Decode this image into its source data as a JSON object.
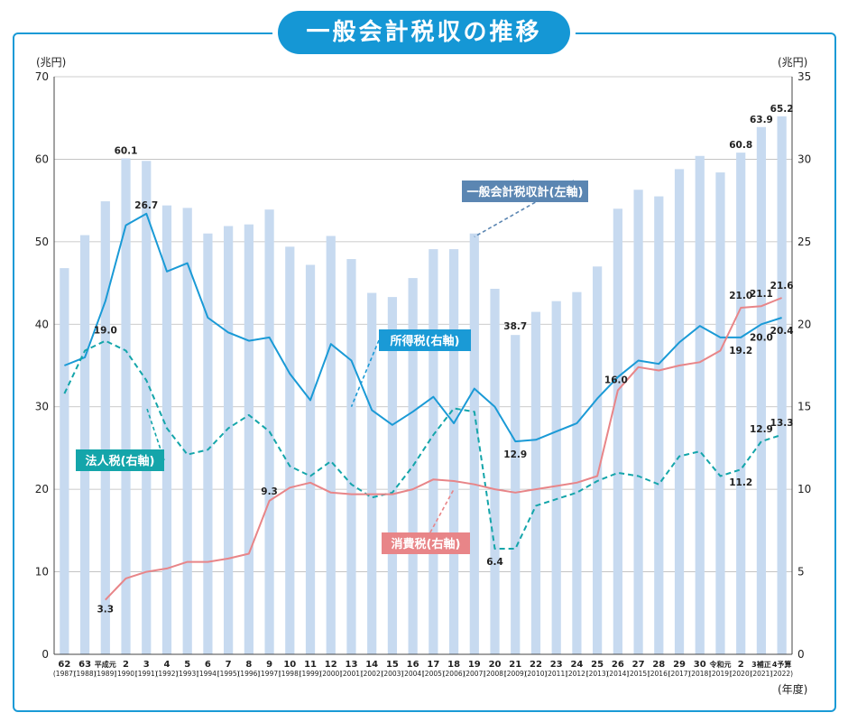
{
  "title": "一般会計税収の推移",
  "chart_data": {
    "type": "bar",
    "left_axis_unit": "(兆円)",
    "right_axis_unit": "(兆円)",
    "x_unit": "(年度)",
    "ylim_left": [
      0,
      70
    ],
    "ylim_right": [
      0,
      35
    ],
    "yticks_left": [
      "0",
      "10",
      "20",
      "30",
      "40",
      "50",
      "60",
      "70"
    ],
    "yticks_right": [
      "0",
      "5",
      "10",
      "15",
      "20",
      "25",
      "30",
      "35"
    ],
    "categories": [
      {
        "top": "62",
        "bottom": "(1987)"
      },
      {
        "top": "63",
        "bottom": "(1988)"
      },
      {
        "top": "平成元",
        "bottom": "(1989)"
      },
      {
        "top": "2",
        "bottom": "(1990)"
      },
      {
        "top": "3",
        "bottom": "(1991)"
      },
      {
        "top": "4",
        "bottom": "(1992)"
      },
      {
        "top": "5",
        "bottom": "(1993)"
      },
      {
        "top": "6",
        "bottom": "(1994)"
      },
      {
        "top": "7",
        "bottom": "(1995)"
      },
      {
        "top": "8",
        "bottom": "(1996)"
      },
      {
        "top": "9",
        "bottom": "(1997)"
      },
      {
        "top": "10",
        "bottom": "(1998)"
      },
      {
        "top": "11",
        "bottom": "(1999)"
      },
      {
        "top": "12",
        "bottom": "(2000)"
      },
      {
        "top": "13",
        "bottom": "(2001)"
      },
      {
        "top": "14",
        "bottom": "(2002)"
      },
      {
        "top": "15",
        "bottom": "(2003)"
      },
      {
        "top": "16",
        "bottom": "(2004)"
      },
      {
        "top": "17",
        "bottom": "(2005)"
      },
      {
        "top": "18",
        "bottom": "(2006)"
      },
      {
        "top": "19",
        "bottom": "(2007)"
      },
      {
        "top": "20",
        "bottom": "(2008)"
      },
      {
        "top": "21",
        "bottom": "(2009)"
      },
      {
        "top": "22",
        "bottom": "(2010)"
      },
      {
        "top": "23",
        "bottom": "(2011)"
      },
      {
        "top": "24",
        "bottom": "(2012)"
      },
      {
        "top": "25",
        "bottom": "(2013)"
      },
      {
        "top": "26",
        "bottom": "(2014)"
      },
      {
        "top": "27",
        "bottom": "(2015)"
      },
      {
        "top": "28",
        "bottom": "(2016)"
      },
      {
        "top": "29",
        "bottom": "(2017)"
      },
      {
        "top": "30",
        "bottom": "(2018)"
      },
      {
        "top": "令和元",
        "bottom": "(2019)"
      },
      {
        "top": "2",
        "bottom": "(2020)"
      },
      {
        "top": "3補正",
        "bottom": "(2021)"
      },
      {
        "top": "4予算",
        "bottom": "(2022)"
      }
    ],
    "series": [
      {
        "name": "一般会計税収計(左軸)",
        "kind": "bar",
        "axis": "left",
        "color": "#c7daf0",
        "values": [
          46.8,
          50.8,
          54.9,
          60.1,
          59.8,
          54.4,
          54.1,
          51.0,
          51.9,
          52.1,
          53.9,
          49.4,
          47.2,
          50.7,
          47.9,
          43.8,
          43.3,
          45.6,
          49.1,
          49.1,
          51.0,
          44.3,
          38.7,
          41.5,
          42.8,
          43.9,
          47.0,
          54.0,
          56.3,
          55.5,
          58.8,
          60.4,
          58.4,
          60.8,
          63.9,
          65.2
        ],
        "labels": {
          "3": "60.1",
          "22": "38.7",
          "33": "60.8",
          "34": "63.9",
          "35": "65.2"
        }
      },
      {
        "name": "所得税(右軸)",
        "kind": "line",
        "axis": "right",
        "color": "#1a9ad6",
        "dash": false,
        "values": [
          17.5,
          18.0,
          21.4,
          26.0,
          26.7,
          23.2,
          23.7,
          20.4,
          19.5,
          19.0,
          19.2,
          17.0,
          15.4,
          18.8,
          17.8,
          14.8,
          13.9,
          14.7,
          15.6,
          14.0,
          16.1,
          15.0,
          12.9,
          13.0,
          13.5,
          14.0,
          15.5,
          16.8,
          17.8,
          17.6,
          18.9,
          19.9,
          19.2,
          19.2,
          20.0,
          20.4
        ],
        "labels": {
          "4": "26.7",
          "22": "12.9",
          "33": "19.2",
          "34": "20.0",
          "35": "20.4"
        }
      },
      {
        "name": "法人税(右軸)",
        "kind": "line",
        "axis": "right",
        "color": "#14a5aa",
        "dash": true,
        "values": [
          15.8,
          18.4,
          19.0,
          18.4,
          16.6,
          13.7,
          12.1,
          12.4,
          13.7,
          14.5,
          13.5,
          11.4,
          10.8,
          11.7,
          10.3,
          9.5,
          9.8,
          11.4,
          13.3,
          14.9,
          14.7,
          6.4,
          6.4,
          9.0,
          9.4,
          9.8,
          10.5,
          11.0,
          10.8,
          10.3,
          12.0,
          12.3,
          10.8,
          11.2,
          12.9,
          13.3
        ],
        "labels": {
          "2": "19.0",
          "21": "6.4",
          "33": "11.2",
          "34": "12.9",
          "35": "13.3"
        }
      },
      {
        "name": "消費税(右軸)",
        "kind": "line",
        "axis": "right",
        "color": "#e88588",
        "dash": false,
        "values": [
          null,
          null,
          3.3,
          4.6,
          5.0,
          5.2,
          5.6,
          5.6,
          5.8,
          6.1,
          9.3,
          10.1,
          10.4,
          9.8,
          9.7,
          9.7,
          9.7,
          10.0,
          10.6,
          10.5,
          10.3,
          10.0,
          9.8,
          10.0,
          10.2,
          10.4,
          10.8,
          16.0,
          17.4,
          17.2,
          17.5,
          17.7,
          18.4,
          21.0,
          21.1,
          21.6
        ],
        "labels": {
          "2": "3.3",
          "10": "9.3",
          "27": "16.0",
          "33": "21.0",
          "34": "21.1",
          "35": "21.6"
        }
      }
    ],
    "annotations": [
      {
        "text": "一般会計税収計(左軸)",
        "series": 0,
        "color": "#5b86b2"
      },
      {
        "text": "所得税(右軸)",
        "series": 1,
        "color": "#1a9ad6"
      },
      {
        "text": "法人税(右軸)",
        "series": 2,
        "color": "#14a5aa"
      },
      {
        "text": "消費税(右軸)",
        "series": 3,
        "color": "#e88588"
      }
    ]
  }
}
